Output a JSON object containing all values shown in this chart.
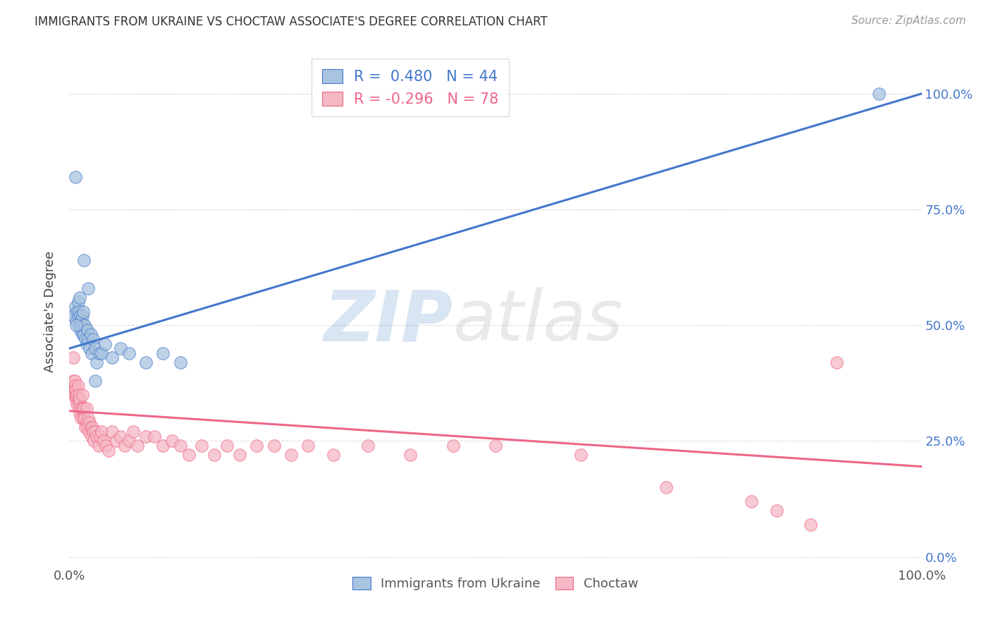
{
  "title": "IMMIGRANTS FROM UKRAINE VS CHOCTAW ASSOCIATE'S DEGREE CORRELATION CHART",
  "source": "Source: ZipAtlas.com",
  "ylabel": "Associate's Degree",
  "right_yticks": [
    0.0,
    0.25,
    0.5,
    0.75,
    1.0
  ],
  "right_yticklabels": [
    "0.0%",
    "25.0%",
    "50.0%",
    "75.0%",
    "100.0%"
  ],
  "legend_labels": [
    "Immigrants from Ukraine",
    "Choctaw"
  ],
  "legend_r": [
    "0.480",
    "-0.296"
  ],
  "legend_n": [
    "44",
    "78"
  ],
  "blue_color": "#A8C4E0",
  "pink_color": "#F5B8C4",
  "blue_line_color": "#4477CC",
  "pink_line_color": "#EE6688",
  "watermark_zip": "ZIP",
  "watermark_atlas": "atlas",
  "blue_line": {
    "x0": 0.0,
    "x1": 1.0,
    "y0": 0.45,
    "y1": 1.0
  },
  "pink_line": {
    "x0": 0.0,
    "x1": 1.0,
    "y0": 0.315,
    "y1": 0.195
  },
  "xlim": [
    0.0,
    1.0
  ],
  "ylim": [
    -0.02,
    1.08
  ],
  "grid_color": "#DDDDDD",
  "background_color": "#FFFFFF",
  "blue_points_x": [
    0.005,
    0.007,
    0.008,
    0.009,
    0.01,
    0.01,
    0.011,
    0.011,
    0.012,
    0.012,
    0.013,
    0.013,
    0.014,
    0.015,
    0.015,
    0.016,
    0.016,
    0.017,
    0.018,
    0.019,
    0.02,
    0.021,
    0.022,
    0.024,
    0.025,
    0.026,
    0.028,
    0.03,
    0.032,
    0.035,
    0.038,
    0.042,
    0.05,
    0.06,
    0.07,
    0.09,
    0.11,
    0.13,
    0.007,
    0.017,
    0.022,
    0.03,
    0.95,
    0.008
  ],
  "blue_points_y": [
    0.52,
    0.54,
    0.51,
    0.53,
    0.52,
    0.55,
    0.5,
    0.53,
    0.5,
    0.56,
    0.52,
    0.49,
    0.51,
    0.52,
    0.48,
    0.5,
    0.53,
    0.48,
    0.5,
    0.47,
    0.46,
    0.49,
    0.47,
    0.45,
    0.48,
    0.44,
    0.47,
    0.45,
    0.42,
    0.44,
    0.44,
    0.46,
    0.43,
    0.45,
    0.44,
    0.42,
    0.44,
    0.42,
    0.82,
    0.64,
    0.58,
    0.38,
    1.0,
    0.5
  ],
  "pink_points_x": [
    0.003,
    0.004,
    0.005,
    0.005,
    0.006,
    0.006,
    0.007,
    0.007,
    0.008,
    0.008,
    0.009,
    0.009,
    0.01,
    0.01,
    0.011,
    0.011,
    0.012,
    0.012,
    0.013,
    0.014,
    0.015,
    0.015,
    0.016,
    0.017,
    0.018,
    0.019,
    0.02,
    0.02,
    0.021,
    0.022,
    0.023,
    0.024,
    0.025,
    0.026,
    0.027,
    0.028,
    0.029,
    0.03,
    0.032,
    0.034,
    0.036,
    0.038,
    0.04,
    0.043,
    0.046,
    0.05,
    0.055,
    0.06,
    0.065,
    0.07,
    0.075,
    0.08,
    0.09,
    0.1,
    0.11,
    0.12,
    0.13,
    0.14,
    0.155,
    0.17,
    0.185,
    0.2,
    0.22,
    0.24,
    0.26,
    0.28,
    0.31,
    0.35,
    0.4,
    0.45,
    0.5,
    0.6,
    0.7,
    0.8,
    0.83,
    0.87,
    0.9,
    0.005
  ],
  "pink_points_y": [
    0.37,
    0.36,
    0.38,
    0.35,
    0.36,
    0.38,
    0.35,
    0.37,
    0.34,
    0.36,
    0.35,
    0.33,
    0.34,
    0.37,
    0.33,
    0.35,
    0.31,
    0.34,
    0.32,
    0.3,
    0.32,
    0.35,
    0.3,
    0.32,
    0.3,
    0.28,
    0.29,
    0.32,
    0.28,
    0.3,
    0.27,
    0.29,
    0.28,
    0.26,
    0.28,
    0.27,
    0.25,
    0.27,
    0.26,
    0.24,
    0.26,
    0.27,
    0.25,
    0.24,
    0.23,
    0.27,
    0.25,
    0.26,
    0.24,
    0.25,
    0.27,
    0.24,
    0.26,
    0.26,
    0.24,
    0.25,
    0.24,
    0.22,
    0.24,
    0.22,
    0.24,
    0.22,
    0.24,
    0.24,
    0.22,
    0.24,
    0.22,
    0.24,
    0.22,
    0.24,
    0.24,
    0.22,
    0.15,
    0.12,
    0.1,
    0.07,
    0.42,
    0.43
  ]
}
